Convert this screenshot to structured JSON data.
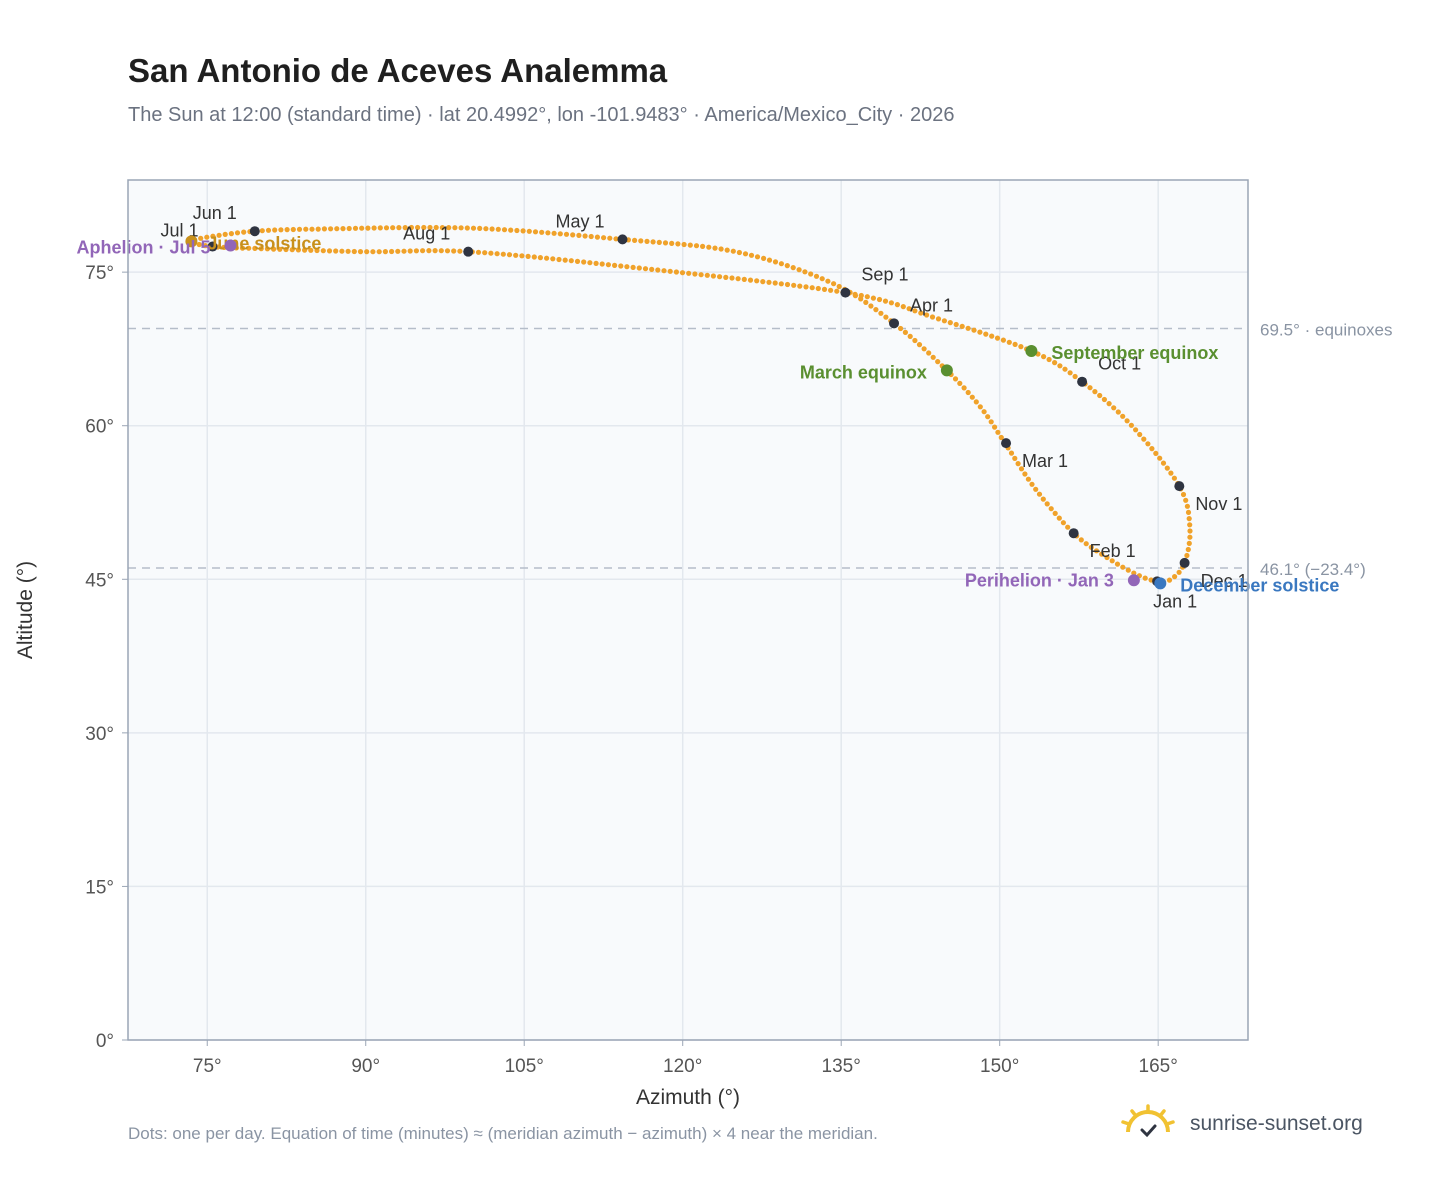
{
  "title": "San Antonio de Aceves Analemma",
  "subtitle": "The Sun at 12:00 (standard time) · lat 20.4992°, lon -101.9483° · America/Mexico_City · 2026",
  "footnote": "Dots: one per day. Equation of time (minutes) ≈ (meridian azimuth − azimuth) × 4 near the meridian.",
  "brand": {
    "name": "sunrise-sunset.org",
    "icon": "sun-logo-icon"
  },
  "colors": {
    "curve": "#f0a22a",
    "month_marker": "#2f3441",
    "equinox": "#5a8f30",
    "solstice_june": "#c8901c",
    "solstice_december": "#3a78c0",
    "apsis": "#9266b8",
    "reference_line": "#b5bdc9",
    "plot_bg": "#f8fafc",
    "axis": "#9aa5b5"
  },
  "chart_data": {
    "type": "scatter",
    "xlabel": "Azimuth (°)",
    "ylabel": "Altitude (°)",
    "xlim": [
      67.5,
      173.5
    ],
    "ylim": [
      0,
      84
    ],
    "xticks": [
      75,
      90,
      105,
      120,
      135,
      150,
      165
    ],
    "xtick_labels": [
      "75°",
      "90°",
      "105°",
      "120°",
      "135°",
      "150°",
      "165°"
    ],
    "yticks": [
      0,
      15,
      30,
      45,
      60,
      75
    ],
    "ytick_labels": [
      "0°",
      "15°",
      "30°",
      "45°",
      "60°",
      "75°"
    ],
    "grid": true,
    "series": [
      {
        "points": [
          [
            164.9,
            44.8
          ],
          [
            162.9,
            45.5
          ],
          [
            160.2,
            47.1
          ],
          [
            157.0,
            49.5
          ],
          [
            153.4,
            53.8
          ],
          [
            150.5,
            58.3
          ],
          [
            148.2,
            61.8
          ],
          [
            145.0,
            65.4
          ],
          [
            140.0,
            70.0
          ],
          [
            134.0,
            74.0
          ],
          [
            125.0,
            77.0
          ],
          [
            114.3,
            78.2
          ],
          [
            100.0,
            79.3
          ],
          [
            85.0,
            79.2
          ],
          [
            79.5,
            79.0
          ],
          [
            75.5,
            78.5
          ],
          [
            73.5,
            78.0
          ],
          [
            75.5,
            77.5
          ],
          [
            80.0,
            77.3
          ],
          [
            90.0,
            77.0
          ],
          [
            99.7,
            77.0
          ],
          [
            115.0,
            75.5
          ],
          [
            135.4,
            73.0
          ],
          [
            144.0,
            70.5
          ],
          [
            153.0,
            67.3
          ],
          [
            157.8,
            64.3
          ],
          [
            162.5,
            60.0
          ],
          [
            167.0,
            54.1
          ],
          [
            168.0,
            50.0
          ],
          [
            167.5,
            46.6
          ],
          [
            166.2,
            45.0
          ],
          [
            164.9,
            44.8
          ]
        ]
      }
    ],
    "month_markers": [
      {
        "label": "Jan 1",
        "x": 164.9,
        "y": 44.8
      },
      {
        "label": "Feb 1",
        "x": 157.0,
        "y": 49.5
      },
      {
        "label": "Mar 1",
        "x": 150.6,
        "y": 58.3
      },
      {
        "label": "Apr 1",
        "x": 140.0,
        "y": 70.0
      },
      {
        "label": "May 1",
        "x": 114.3,
        "y": 78.2
      },
      {
        "label": "Jun 1",
        "x": 79.5,
        "y": 79.0
      },
      {
        "label": "Jul 1",
        "x": 75.5,
        "y": 77.5
      },
      {
        "label": "Aug 1",
        "x": 99.7,
        "y": 77.0
      },
      {
        "label": "Sep 1",
        "x": 135.4,
        "y": 73.0
      },
      {
        "label": "Oct 1",
        "x": 157.8,
        "y": 64.3
      },
      {
        "label": "Nov 1",
        "x": 167.0,
        "y": 54.1
      },
      {
        "label": "Dec 1",
        "x": 167.5,
        "y": 46.6
      }
    ],
    "events": [
      {
        "label": "March equinox",
        "x": 145.0,
        "y": 65.4,
        "color_key": "equinox"
      },
      {
        "label": "September equinox",
        "x": 153.0,
        "y": 67.3,
        "color_key": "equinox"
      },
      {
        "label": "June solstice",
        "x": 73.5,
        "y": 78.0,
        "color_key": "solstice_june"
      },
      {
        "label": "December solstice",
        "x": 165.2,
        "y": 44.6,
        "color_key": "solstice_december"
      },
      {
        "label": "Perihelion · Jan 3",
        "x": 162.7,
        "y": 44.9,
        "color_key": "apsis"
      },
      {
        "label": "Aphelion · Jul 5",
        "x": 77.2,
        "y": 77.6,
        "color_key": "apsis"
      }
    ],
    "reference_lines": [
      {
        "y": 69.5,
        "label": "69.5° · equinoxes"
      },
      {
        "y": 46.1,
        "label": "46.1° (−23.4°)"
      }
    ]
  }
}
